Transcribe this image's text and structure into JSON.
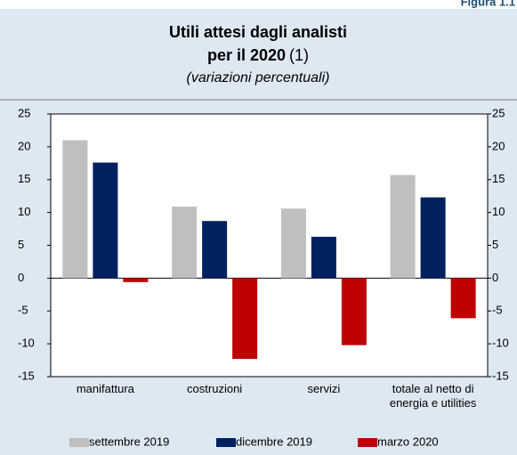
{
  "figure_label": "Figura 1.1",
  "chart_data": {
    "type": "bar",
    "title": "Utili attesi dagli analisti",
    "title_line2": "per il 2020",
    "title_note": "(1)",
    "subtitle": "(variazioni percentuali)",
    "categories": [
      "manifattura",
      "costruzioni",
      "servizi",
      "totale al netto di energia e utilities"
    ],
    "series": [
      {
        "name": "settembre 2019",
        "color": "#bfbfbf",
        "values": [
          21,
          10.9,
          10.6,
          15.7
        ]
      },
      {
        "name": "dicembre 2019",
        "color": "#002060",
        "values": [
          17.6,
          8.7,
          6.3,
          12.3
        ]
      },
      {
        "name": "marzo 2020",
        "color": "#c00000",
        "values": [
          -0.6,
          -12.3,
          -10.2,
          -6.1
        ]
      }
    ],
    "ylim": [
      -15,
      25
    ],
    "yticks": [
      -15,
      -10,
      -5,
      0,
      5,
      10,
      15,
      20,
      25
    ],
    "legend": "bottom"
  }
}
